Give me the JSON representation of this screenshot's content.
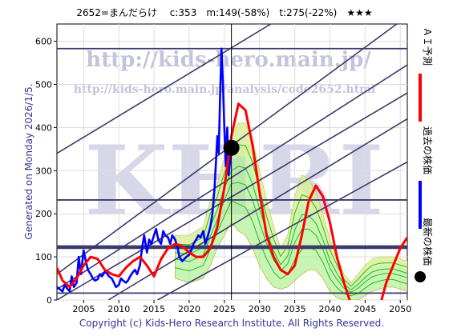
{
  "header": {
    "title": "2652=まんだらけ　 c:353　m:149(-58%)　t:275(-22%)　★★★"
  },
  "side_label": "Generated on Monday 2026/1/5.",
  "footer": "Copyright (c) Kids-Hero Research Institute. All Rights Reserved.",
  "watermark": {
    "big": "KHRI",
    "url1": "http://kids-hero.main.jp/",
    "url2": "http://kids-hero.main.jp/analysis/code2652.html"
  },
  "legend": [
    {
      "label": "ＡＩ予測",
      "color": "#ff0000",
      "icon": "red-line"
    },
    {
      "label": "過去の株価",
      "color": "#0000ff",
      "icon": "blue-line"
    },
    {
      "label": "最新の株価",
      "color": "#000000",
      "icon": "black-dot"
    }
  ],
  "colors": {
    "actual": "#0000ff",
    "forecast": "#ff0000",
    "ensemble": "#22bb22",
    "band_fill": "#aaf08a",
    "band_fill_yellow": "#f0f0a0",
    "channel": "#3a3a6a"
  },
  "chart_data": {
    "type": "line",
    "title": "2652=まんだらけ　 c:353　m:149(-58%)　t:275(-22%)　★★★",
    "xlim": [
      2001.2,
      2051
    ],
    "ylim": [
      0,
      640
    ],
    "x_ticks": [
      2005,
      2010,
      2015,
      2020,
      2025,
      2030,
      2035,
      2040,
      2045,
      2050
    ],
    "y_ticks": [
      0,
      100,
      200,
      300,
      400,
      500,
      600
    ],
    "current_point": {
      "x": 2026.0,
      "y": 353
    },
    "horizontal_levels": [
      583,
      232,
      124,
      120,
      16
    ],
    "channel_lines": [
      {
        "x1": 2001.2,
        "y1": 340,
        "x2": 2031.6,
        "y2": 640
      },
      {
        "x1": 2001.2,
        "y1": 60,
        "x2": 2049.5,
        "y2": 640
      },
      {
        "x1": 2001.2,
        "y1": 25,
        "x2": 2051,
        "y2": 545
      },
      {
        "x1": 2001.2,
        "y1": 0,
        "x2": 2051,
        "y2": 480
      },
      {
        "x1": 2008.5,
        "y1": 0,
        "x2": 2051,
        "y2": 420
      },
      {
        "x1": 2015.5,
        "y1": 0,
        "x2": 2051,
        "y2": 320
      }
    ],
    "series": [
      {
        "name": "過去の株価",
        "color": "#0000ff",
        "x": [
          2001.2,
          2001.6,
          2002.0,
          2002.3,
          2002.6,
          2003.0,
          2003.3,
          2003.6,
          2004.0,
          2004.3,
          2004.6,
          2005.0,
          2005.3,
          2005.6,
          2006.0,
          2006.3,
          2006.6,
          2007.0,
          2007.3,
          2007.6,
          2008.0,
          2008.3,
          2008.6,
          2009.0,
          2009.3,
          2009.6,
          2010.0,
          2010.3,
          2010.6,
          2011.0,
          2011.3,
          2011.6,
          2012.0,
          2012.3,
          2012.6,
          2013.0,
          2013.3,
          2013.6,
          2014.0,
          2014.3,
          2014.6,
          2015.0,
          2015.3,
          2015.6,
          2016.0,
          2016.3,
          2016.6,
          2017.0,
          2017.3,
          2017.6,
          2018.0,
          2018.3,
          2018.6,
          2019.0,
          2019.3,
          2019.6,
          2020.0,
          2020.3,
          2020.6,
          2021.0,
          2021.3,
          2021.6,
          2022.0,
          2022.3,
          2022.6,
          2023.0,
          2023.3,
          2023.6,
          2024.0,
          2024.2,
          2024.4,
          2024.6,
          2024.8,
          2025.0,
          2025.2,
          2025.4,
          2025.6,
          2025.8,
          2026.0
        ],
        "y": [
          30,
          25,
          20,
          35,
          28,
          20,
          55,
          30,
          40,
          100,
          60,
          115,
          90,
          70,
          60,
          50,
          45,
          48,
          60,
          55,
          65,
          62,
          55,
          50,
          40,
          30,
          35,
          50,
          45,
          40,
          45,
          55,
          65,
          70,
          60,
          80,
          120,
          150,
          110,
          140,
          130,
          150,
          165,
          140,
          130,
          160,
          150,
          145,
          130,
          150,
          140,
          125,
          100,
          90,
          95,
          100,
          105,
          115,
          130,
          140,
          150,
          145,
          160,
          130,
          145,
          170,
          200,
          260,
          380,
          340,
          480,
          583,
          500,
          400,
          310,
          400,
          290,
          320,
          353
        ]
      },
      {
        "name": "ＡＩ予測",
        "color": "#ff0000",
        "x": [
          2001.2,
          2002.0,
          2003.0,
          2004.0,
          2005.0,
          2006.0,
          2007.0,
          2008.0,
          2009.0,
          2010.0,
          2011.0,
          2012.0,
          2013.0,
          2014.0,
          2015.0,
          2016.0,
          2017.0,
          2018.0,
          2019.0,
          2020.0,
          2021.0,
          2022.0,
          2023.0,
          2024.0,
          2025.0,
          2026.0,
          2027.0,
          2028.0,
          2029.0,
          2030.0,
          2031.0,
          2032.0,
          2033.0,
          2034.0,
          2035.0,
          2036.0,
          2037.0,
          2038.0,
          2039.0,
          2040.0,
          2041.0,
          2042.0,
          2043.0,
          2044.0,
          2045.0,
          2046.0,
          2047.0,
          2048.0,
          2049.0,
          2050.0,
          2051.0
        ],
        "y": [
          75,
          45,
          30,
          50,
          80,
          100,
          95,
          70,
          60,
          55,
          75,
          90,
          100,
          80,
          55,
          95,
          120,
          130,
          125,
          110,
          100,
          100,
          120,
          170,
          260,
          380,
          455,
          440,
          360,
          250,
          150,
          100,
          70,
          60,
          80,
          150,
          230,
          265,
          240,
          180,
          100,
          40,
          -10,
          -60,
          -80,
          -50,
          -20,
          40,
          80,
          120,
          145
        ]
      }
    ],
    "ensemble_band": {
      "x": [
        2018,
        2020,
        2022,
        2023,
        2024,
        2025,
        2026,
        2027,
        2028,
        2029,
        2030,
        2031,
        2032,
        2033,
        2034,
        2035,
        2036,
        2037,
        2038,
        2039,
        2040,
        2041,
        2042,
        2043,
        2044,
        2045,
        2046,
        2047,
        2048,
        2049,
        2050,
        2051
      ],
      "upper": [
        150,
        150,
        170,
        230,
        270,
        330,
        380,
        410,
        410,
        370,
        300,
        230,
        170,
        120,
        150,
        240,
        290,
        280,
        250,
        200,
        140,
        100,
        60,
        40,
        60,
        80,
        95,
        100,
        100,
        100,
        95,
        90
      ],
      "lower": [
        50,
        40,
        50,
        80,
        120,
        150,
        180,
        160,
        150,
        120,
        80,
        50,
        30,
        25,
        30,
        45,
        60,
        70,
        70,
        50,
        20,
        5,
        0,
        0,
        0,
        10,
        20,
        25,
        30,
        30,
        25,
        20
      ]
    }
  }
}
